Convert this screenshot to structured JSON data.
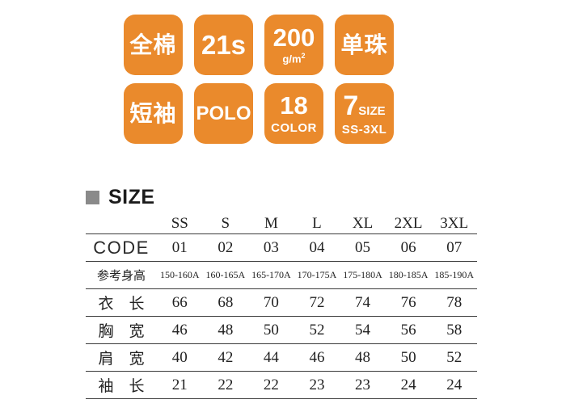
{
  "page": {
    "background": "#ffffff"
  },
  "badges": {
    "color": "#ea8a2c",
    "text_color": "#ffffff",
    "items": [
      {
        "id": "cotton",
        "line1": "全棉"
      },
      {
        "id": "yarn",
        "line1": "21s"
      },
      {
        "id": "weight",
        "line1": "200",
        "line2": "g/m",
        "sup": "2"
      },
      {
        "id": "pique",
        "line1": "单珠"
      },
      {
        "id": "sleeve",
        "line1": "短袖"
      },
      {
        "id": "polo",
        "line1": "POLO"
      },
      {
        "id": "colors",
        "line1": "18",
        "line2": "COLOR"
      },
      {
        "id": "sizes",
        "big": "7",
        "small": "SIZE",
        "line2": "SS-3XL"
      }
    ]
  },
  "size_section": {
    "title": "SIZE",
    "bullet_color": "#8a8a8a"
  },
  "size_table": {
    "columns": [
      "SS",
      "S",
      "M",
      "L",
      "XL",
      "2XL",
      "3XL"
    ],
    "rows": [
      {
        "label": "CODE",
        "values": [
          "01",
          "02",
          "03",
          "04",
          "05",
          "06",
          "07"
        ]
      },
      {
        "label": "参考身高",
        "values": [
          "150-160A",
          "160-165A",
          "165-170A",
          "170-175A",
          "175-180A",
          "180-185A",
          "185-190A"
        ]
      },
      {
        "label": "衣　长",
        "values": [
          "66",
          "68",
          "70",
          "72",
          "74",
          "76",
          "78"
        ]
      },
      {
        "label": "胸　宽",
        "values": [
          "46",
          "48",
          "50",
          "52",
          "54",
          "56",
          "58"
        ]
      },
      {
        "label": "肩　宽",
        "values": [
          "40",
          "42",
          "44",
          "46",
          "48",
          "50",
          "52"
        ]
      },
      {
        "label": "袖　长",
        "values": [
          "21",
          "22",
          "22",
          "23",
          "23",
          "24",
          "24"
        ]
      }
    ]
  }
}
